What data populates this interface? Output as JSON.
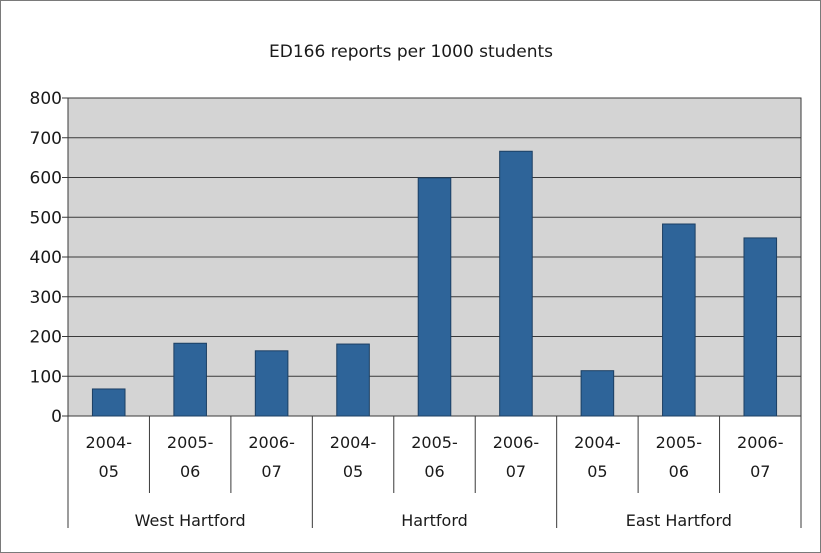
{
  "chart_data": {
    "type": "bar",
    "title": "ED166 reports per 1000 students",
    "xlabel": "",
    "ylabel": "",
    "ylim": [
      0,
      800
    ],
    "yticks": [
      0,
      100,
      200,
      300,
      400,
      500,
      600,
      700,
      800
    ],
    "grid": true,
    "legend": "none",
    "groups": [
      {
        "name": "West Hartford",
        "categories": [
          {
            "label": [
              "2004-",
              "05"
            ],
            "value": 68
          },
          {
            "label": [
              "2005-",
              "06"
            ],
            "value": 183
          },
          {
            "label": [
              "2006-",
              "07"
            ],
            "value": 164
          }
        ]
      },
      {
        "name": "Hartford",
        "categories": [
          {
            "label": [
              "2004-",
              "05"
            ],
            "value": 181
          },
          {
            "label": [
              "2005-",
              "06"
            ],
            "value": 599
          },
          {
            "label": [
              "2006-",
              "07"
            ],
            "value": 666
          }
        ]
      },
      {
        "name": "East Hartford",
        "categories": [
          {
            "label": [
              "2004-",
              "05"
            ],
            "value": 114
          },
          {
            "label": [
              "2005-",
              "06"
            ],
            "value": 483
          },
          {
            "label": [
              "2006-",
              "07"
            ],
            "value": 448
          }
        ]
      }
    ],
    "colors": {
      "bar": "#2e6499",
      "bar_edge": "#1c3f63",
      "plot_bg": "#d4d4d4",
      "grid": "#3a3a3a",
      "axis": "#3a3a3a"
    }
  }
}
